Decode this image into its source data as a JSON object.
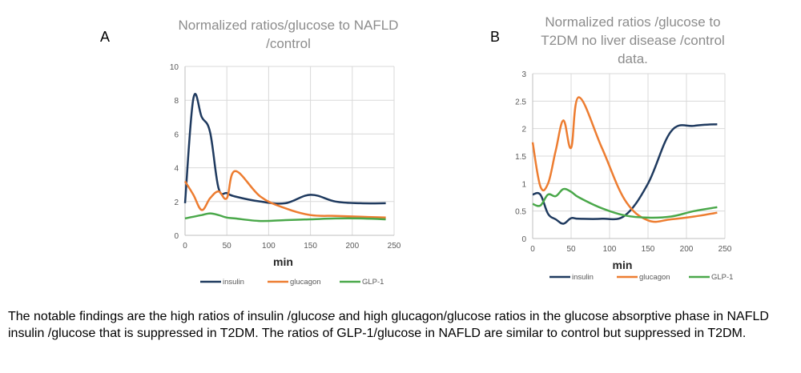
{
  "panels": [
    {
      "letter": "A",
      "title_line1": "Normalized ratios/glucose to NAFLD",
      "title_line2": "/control",
      "title_line3": ""
    },
    {
      "letter": "B",
      "title_line1": "Normalized ratios /glucose  to",
      "title_line2": "T2DM no liver disease /control",
      "title_line3": "data."
    }
  ],
  "caption": {
    "part1": "The notable findings are the high ratios of insulin /gluc",
    "italic": "ose",
    "part2": " and high glucagon/glucose ratios in the glucose absorptive phase in NAFLD  insulin /glucose that is suppressed in T2DM.  The ratios of GLP-1/glucose in NAFLD are similar to control but suppressed in T2DM."
  },
  "colors": {
    "insulin": "#1f3a5f",
    "glucagon": "#ed7d31",
    "glp1": "#4aa84a",
    "grid": "#d9d9d9",
    "axis_text": "#595959"
  },
  "chart_data": [
    {
      "type": "line",
      "title": "Normalized ratios/glucose to NAFLD /control",
      "xlabel": "min",
      "ylabel": "",
      "xlim": [
        0,
        250
      ],
      "ylim": [
        0,
        10
      ],
      "xticks": [
        0,
        50,
        100,
        150,
        200,
        250
      ],
      "yticks": [
        0,
        2,
        4,
        6,
        8,
        10
      ],
      "grid": true,
      "legend_position": "bottom",
      "series": [
        {
          "name": "insulin",
          "color": "#1f3a5f",
          "x": [
            0,
            10,
            20,
            30,
            40,
            50,
            60,
            90,
            120,
            150,
            180,
            210,
            240
          ],
          "y": [
            1.9,
            8.1,
            7.0,
            6.1,
            2.8,
            2.5,
            2.3,
            2.0,
            1.9,
            2.4,
            2.0,
            1.9,
            1.9
          ]
        },
        {
          "name": "glucagon",
          "color": "#ed7d31",
          "x": [
            0,
            10,
            20,
            30,
            40,
            50,
            60,
            90,
            120,
            150,
            180,
            210,
            240
          ],
          "y": [
            3.2,
            2.4,
            1.5,
            2.2,
            2.6,
            2.2,
            3.8,
            2.3,
            1.6,
            1.2,
            1.15,
            1.1,
            1.05
          ]
        },
        {
          "name": "GLP-1",
          "color": "#4aa84a",
          "x": [
            0,
            10,
            20,
            30,
            40,
            50,
            60,
            90,
            120,
            150,
            180,
            210,
            240
          ],
          "y": [
            1.0,
            1.1,
            1.2,
            1.3,
            1.2,
            1.05,
            1.0,
            0.85,
            0.9,
            0.95,
            1.0,
            1.0,
            0.95
          ]
        }
      ]
    },
    {
      "type": "line",
      "title": "Normalized ratios /glucose  to T2DM no liver disease /control data.",
      "xlabel": "min",
      "ylabel": "",
      "xlim": [
        0,
        250
      ],
      "ylim": [
        0,
        3
      ],
      "xticks": [
        0,
        50,
        100,
        150,
        200,
        250
      ],
      "yticks": [
        0,
        0.5,
        1,
        1.5,
        2,
        2.5,
        3
      ],
      "grid": true,
      "legend_position": "bottom",
      "series": [
        {
          "name": "insulin",
          "color": "#1f3a5f",
          "x": [
            0,
            10,
            20,
            30,
            40,
            50,
            60,
            90,
            120,
            150,
            180,
            210,
            240
          ],
          "y": [
            0.8,
            0.8,
            0.45,
            0.35,
            0.27,
            0.37,
            0.36,
            0.36,
            0.42,
            1.0,
            1.95,
            2.05,
            2.08
          ]
        },
        {
          "name": "glucagon",
          "color": "#ed7d31",
          "x": [
            0,
            10,
            20,
            30,
            40,
            50,
            60,
            90,
            120,
            150,
            180,
            210,
            240
          ],
          "y": [
            1.75,
            0.95,
            1.0,
            1.6,
            2.15,
            1.65,
            2.57,
            1.65,
            0.7,
            0.33,
            0.35,
            0.4,
            0.47
          ]
        },
        {
          "name": "GLP-1",
          "color": "#4aa84a",
          "x": [
            0,
            10,
            20,
            30,
            40,
            50,
            60,
            90,
            120,
            150,
            180,
            210,
            240
          ],
          "y": [
            0.63,
            0.6,
            0.8,
            0.77,
            0.9,
            0.85,
            0.75,
            0.55,
            0.42,
            0.38,
            0.4,
            0.5,
            0.57
          ]
        }
      ]
    }
  ]
}
